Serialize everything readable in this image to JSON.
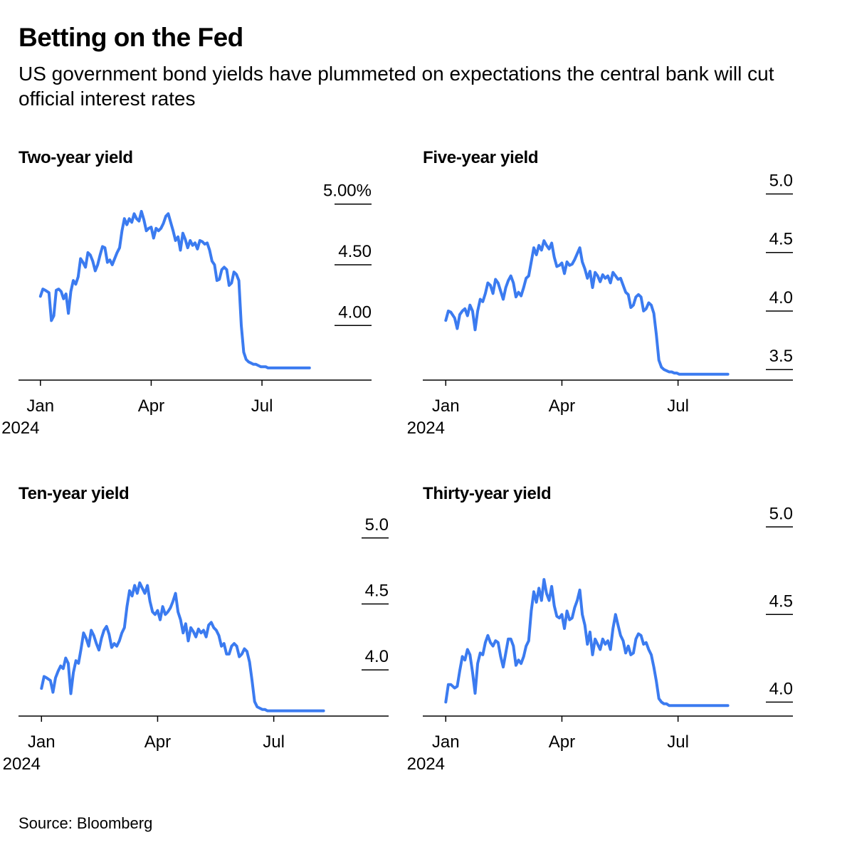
{
  "header": {
    "title": "Betting on the Fed",
    "subtitle": "US government bond yields have plummeted on expectations the central bank will cut official interest rates"
  },
  "footer": {
    "source": "Source: Bloomberg"
  },
  "colors": {
    "line": "#3b7bf0",
    "axis": "#000000",
    "background": "#ffffff"
  },
  "chart_data": [
    {
      "type": "line",
      "title": "Two-year yield",
      "x_ticks": [
        "Jan\n2024",
        "Apr",
        "Jul"
      ],
      "x_tick_days": [
        0,
        91,
        182
      ],
      "xlim": [
        -18,
        272
      ],
      "y_ticks": [
        {
          "value": 4.0,
          "label": "4.00"
        },
        {
          "value": 4.5,
          "label": "4.50"
        },
        {
          "value": 5.0,
          "label": "5.00%"
        }
      ],
      "ylim": [
        3.55,
        5.18
      ],
      "grid": false,
      "series": [
        {
          "x": [
            0,
            2,
            4,
            7,
            9,
            11,
            13,
            15,
            17,
            19,
            21,
            23,
            25,
            27,
            29,
            31,
            33,
            35,
            37,
            39,
            41,
            43,
            45,
            47,
            49,
            51,
            53,
            55,
            57,
            59,
            61,
            63,
            65,
            67,
            69,
            71,
            73,
            75,
            77,
            79,
            81,
            83,
            85,
            87,
            89,
            91,
            93,
            95,
            97,
            99,
            101,
            103,
            105,
            107,
            109,
            111,
            113,
            115,
            117,
            119,
            121,
            123,
            125,
            127,
            129,
            131,
            133,
            135,
            137,
            139,
            141,
            143,
            145,
            147,
            149,
            151,
            153,
            155,
            157,
            159,
            161,
            163,
            165,
            167,
            169,
            171,
            173,
            175,
            177,
            179,
            181,
            183,
            185,
            187,
            189,
            191,
            193,
            195,
            197,
            199,
            201,
            203,
            205,
            207,
            209,
            211,
            213,
            215,
            217,
            219,
            221
          ],
          "y": [
            4.24,
            4.3,
            4.29,
            4.27,
            4.04,
            4.08,
            4.29,
            4.3,
            4.28,
            4.22,
            4.26,
            4.1,
            4.28,
            4.37,
            4.34,
            4.4,
            4.55,
            4.52,
            4.48,
            4.6,
            4.58,
            4.53,
            4.45,
            4.5,
            4.58,
            4.65,
            4.64,
            4.52,
            4.54,
            4.5,
            4.55,
            4.6,
            4.64,
            4.78,
            4.88,
            4.83,
            4.88,
            4.85,
            4.92,
            4.88,
            4.86,
            4.94,
            4.87,
            4.78,
            4.8,
            4.81,
            4.72,
            4.8,
            4.78,
            4.8,
            4.84,
            4.9,
            4.92,
            4.85,
            4.78,
            4.7,
            4.73,
            4.62,
            4.76,
            4.71,
            4.64,
            4.7,
            4.66,
            4.68,
            4.63,
            4.7,
            4.69,
            4.67,
            4.68,
            4.62,
            4.53,
            4.5,
            4.37,
            4.38,
            4.46,
            4.48,
            4.46,
            4.33,
            4.35,
            4.44,
            4.42,
            4.37,
            4.0,
            3.78,
            3.72,
            3.7,
            3.69,
            3.68,
            3.68,
            3.67,
            3.66,
            3.66,
            3.66,
            3.65,
            3.65,
            3.65,
            3.65,
            3.65,
            3.65,
            3.65,
            3.65,
            3.65,
            3.65,
            3.65,
            3.65,
            3.65,
            3.65,
            3.65,
            3.65,
            3.65,
            3.65
          ]
        }
      ]
    },
    {
      "type": "line",
      "title": "Five-year yield",
      "x_ticks": [
        "Jan\n2024",
        "Apr",
        "Jul"
      ],
      "x_tick_days": [
        0,
        91,
        182
      ],
      "xlim": [
        -18,
        272
      ],
      "y_ticks": [
        {
          "value": 3.5,
          "label": "3.5"
        },
        {
          "value": 4.0,
          "label": "4.0"
        },
        {
          "value": 4.5,
          "label": "4.5"
        },
        {
          "value": 5.0,
          "label": "5.0"
        }
      ],
      "ylim": [
        3.41,
        5.1
      ],
      "grid": false,
      "series": [
        {
          "x": [
            0,
            2,
            4,
            7,
            9,
            11,
            13,
            15,
            17,
            19,
            21,
            23,
            25,
            27,
            29,
            31,
            33,
            35,
            37,
            39,
            41,
            43,
            45,
            47,
            49,
            51,
            53,
            55,
            57,
            59,
            61,
            63,
            65,
            67,
            69,
            71,
            73,
            75,
            77,
            79,
            81,
            83,
            85,
            87,
            89,
            91,
            93,
            95,
            97,
            99,
            101,
            103,
            105,
            107,
            109,
            111,
            113,
            115,
            117,
            119,
            121,
            123,
            125,
            127,
            129,
            131,
            133,
            135,
            137,
            139,
            141,
            143,
            145,
            147,
            149,
            151,
            153,
            155,
            157,
            159,
            161,
            163,
            165,
            167,
            169,
            171,
            173,
            175,
            177,
            179,
            181,
            183,
            185,
            187,
            189,
            191,
            193,
            195,
            197,
            199,
            201,
            203,
            205,
            207,
            209,
            211,
            213,
            215,
            217,
            219,
            221
          ],
          "y": [
            3.92,
            4.0,
            3.99,
            3.94,
            3.85,
            3.97,
            4.0,
            4.02,
            3.96,
            4.05,
            4.0,
            3.84,
            4.0,
            4.1,
            4.08,
            4.15,
            4.24,
            4.22,
            4.15,
            4.27,
            4.24,
            4.17,
            4.1,
            4.2,
            4.26,
            4.3,
            4.24,
            4.12,
            4.16,
            4.13,
            4.2,
            4.28,
            4.3,
            4.42,
            4.54,
            4.48,
            4.56,
            4.52,
            4.6,
            4.56,
            4.53,
            4.58,
            4.46,
            4.38,
            4.39,
            4.41,
            4.32,
            4.42,
            4.39,
            4.4,
            4.44,
            4.49,
            4.54,
            4.42,
            4.36,
            4.28,
            4.34,
            4.2,
            4.33,
            4.3,
            4.25,
            4.31,
            4.28,
            4.3,
            4.24,
            4.33,
            4.3,
            4.27,
            4.28,
            4.22,
            4.16,
            4.14,
            4.03,
            4.05,
            4.12,
            4.14,
            4.12,
            4.0,
            4.02,
            4.07,
            4.05,
            3.98,
            3.8,
            3.58,
            3.52,
            3.5,
            3.49,
            3.48,
            3.48,
            3.47,
            3.47,
            3.46,
            3.46,
            3.46,
            3.46,
            3.46,
            3.46,
            3.46,
            3.46,
            3.46,
            3.46,
            3.46,
            3.46,
            3.46,
            3.46,
            3.46,
            3.46,
            3.46,
            3.46,
            3.46,
            3.46
          ]
        }
      ]
    },
    {
      "type": "line",
      "title": "Ten-year yield",
      "x_ticks": [
        "Jan\n2024",
        "Apr",
        "Jul"
      ],
      "x_tick_days": [
        0,
        91,
        182
      ],
      "xlim": [
        -18,
        272
      ],
      "y_ticks": [
        {
          "value": 4.0,
          "label": "4.0"
        },
        {
          "value": 4.5,
          "label": "4.5"
        },
        {
          "value": 5.0,
          "label": "5.0"
        }
      ],
      "ylim": [
        3.65,
        5.15
      ],
      "grid": false,
      "series": [
        {
          "x": [
            0,
            2,
            4,
            7,
            9,
            11,
            13,
            15,
            17,
            19,
            21,
            23,
            25,
            27,
            29,
            31,
            33,
            35,
            37,
            39,
            41,
            43,
            45,
            47,
            49,
            51,
            53,
            55,
            57,
            59,
            61,
            63,
            65,
            67,
            69,
            71,
            73,
            75,
            77,
            79,
            81,
            83,
            85,
            87,
            89,
            91,
            93,
            95,
            97,
            99,
            101,
            103,
            105,
            107,
            109,
            111,
            113,
            115,
            117,
            119,
            121,
            123,
            125,
            127,
            129,
            131,
            133,
            135,
            137,
            139,
            141,
            143,
            145,
            147,
            149,
            151,
            153,
            155,
            157,
            159,
            161,
            163,
            165,
            167,
            169,
            171,
            173,
            175,
            177,
            179,
            181,
            183,
            185,
            187,
            189,
            191,
            193,
            195,
            197,
            199,
            201,
            203,
            205,
            207,
            209,
            211,
            213,
            215,
            217,
            219,
            221
          ],
          "y": [
            3.86,
            3.95,
            3.94,
            3.92,
            3.83,
            3.94,
            3.99,
            4.03,
            4.01,
            4.09,
            4.05,
            3.82,
            3.98,
            4.07,
            4.05,
            4.16,
            4.28,
            4.24,
            4.18,
            4.3,
            4.26,
            4.2,
            4.15,
            4.24,
            4.3,
            4.33,
            4.27,
            4.17,
            4.2,
            4.18,
            4.22,
            4.28,
            4.32,
            4.48,
            4.6,
            4.56,
            4.64,
            4.58,
            4.66,
            4.62,
            4.58,
            4.64,
            4.52,
            4.44,
            4.42,
            4.45,
            4.38,
            4.48,
            4.42,
            4.44,
            4.47,
            4.52,
            4.58,
            4.44,
            4.38,
            4.28,
            4.35,
            4.22,
            4.32,
            4.29,
            4.25,
            4.31,
            4.28,
            4.3,
            4.25,
            4.34,
            4.36,
            4.32,
            4.3,
            4.26,
            4.18,
            4.2,
            4.12,
            4.12,
            4.18,
            4.2,
            4.18,
            4.1,
            4.12,
            4.16,
            4.14,
            4.06,
            3.92,
            3.76,
            3.72,
            3.71,
            3.7,
            3.7,
            3.69,
            3.69,
            3.69,
            3.69,
            3.69,
            3.69,
            3.69,
            3.69,
            3.69,
            3.69,
            3.69,
            3.69,
            3.69,
            3.69,
            3.69,
            3.69,
            3.69,
            3.69,
            3.69,
            3.69,
            3.69,
            3.69,
            3.69
          ]
        }
      ]
    },
    {
      "type": "line",
      "title": "Thirty-year yield",
      "x_ticks": [
        "Jan\n2024",
        "Apr",
        "Jul"
      ],
      "x_tick_days": [
        0,
        91,
        182
      ],
      "xlim": [
        -18,
        272
      ],
      "y_ticks": [
        {
          "value": 4.0,
          "label": "4.0"
        },
        {
          "value": 4.5,
          "label": "4.5"
        },
        {
          "value": 5.0,
          "label": "5.0"
        }
      ],
      "ylim": [
        3.92,
        5.05
      ],
      "grid": false,
      "series": [
        {
          "x": [
            0,
            2,
            4,
            7,
            9,
            11,
            13,
            15,
            17,
            19,
            21,
            23,
            25,
            27,
            29,
            31,
            33,
            35,
            37,
            39,
            41,
            43,
            45,
            47,
            49,
            51,
            53,
            55,
            57,
            59,
            61,
            63,
            65,
            67,
            69,
            71,
            73,
            75,
            77,
            79,
            81,
            83,
            85,
            87,
            89,
            91,
            93,
            95,
            97,
            99,
            101,
            103,
            105,
            107,
            109,
            111,
            113,
            115,
            117,
            119,
            121,
            123,
            125,
            127,
            129,
            131,
            133,
            135,
            137,
            139,
            141,
            143,
            145,
            147,
            149,
            151,
            153,
            155,
            157,
            159,
            161,
            163,
            165,
            167,
            169,
            171,
            173,
            175,
            177,
            179,
            181,
            183,
            185,
            187,
            189,
            191,
            193,
            195,
            197,
            199,
            201,
            203,
            205,
            207,
            209,
            211,
            213,
            215,
            217,
            219,
            221
          ],
          "y": [
            4.0,
            4.1,
            4.1,
            4.08,
            4.09,
            4.18,
            4.26,
            4.24,
            4.3,
            4.27,
            4.17,
            4.05,
            4.22,
            4.28,
            4.27,
            4.34,
            4.38,
            4.34,
            4.32,
            4.35,
            4.34,
            4.26,
            4.2,
            4.28,
            4.36,
            4.36,
            4.32,
            4.21,
            4.24,
            4.22,
            4.26,
            4.32,
            4.35,
            4.52,
            4.63,
            4.57,
            4.65,
            4.58,
            4.7,
            4.62,
            4.58,
            4.66,
            4.55,
            4.49,
            4.48,
            4.5,
            4.42,
            4.52,
            4.47,
            4.48,
            4.54,
            4.58,
            4.64,
            4.5,
            4.44,
            4.33,
            4.4,
            4.27,
            4.36,
            4.33,
            4.3,
            4.36,
            4.33,
            4.35,
            4.3,
            4.42,
            4.5,
            4.44,
            4.38,
            4.35,
            4.28,
            4.32,
            4.27,
            4.28,
            4.36,
            4.39,
            4.38,
            4.33,
            4.34,
            4.3,
            4.27,
            4.2,
            4.12,
            4.02,
            4.0,
            3.99,
            3.99,
            3.98,
            3.98,
            3.98,
            3.98,
            3.98,
            3.98,
            3.98,
            3.98,
            3.98,
            3.98,
            3.98,
            3.98,
            3.98,
            3.98,
            3.98,
            3.98,
            3.98,
            3.98,
            3.98,
            3.98,
            3.98,
            3.98,
            3.98,
            3.98
          ]
        }
      ]
    }
  ]
}
